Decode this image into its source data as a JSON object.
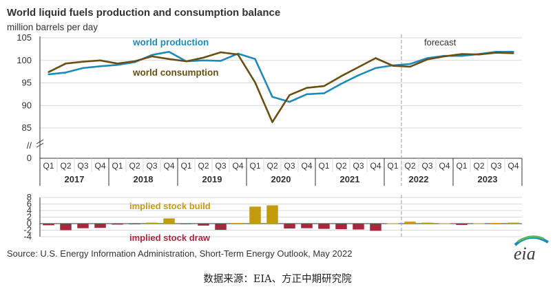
{
  "title": "World liquid fuels production and consumption balance",
  "subtitle": "million barrels per day",
  "colors": {
    "production": "#1d8ab8",
    "consumption": "#6b4f12",
    "build": "#c39b0e",
    "draw": "#a8273f",
    "axis": "#333333",
    "grid": "#d9d9d9",
    "forecast_line": "#aaaaaa"
  },
  "chart_data": [
    {
      "type": "line",
      "title": "World liquid fuels production and consumption balance",
      "ylabel": "million barrels per day",
      "ylim": [
        0,
        105
      ],
      "y_axis_break": "//",
      "yticks": [
        "105",
        "100",
        "95",
        "90",
        "85",
        "//",
        "0"
      ],
      "quarters": [
        "Q1",
        "Q2",
        "Q3",
        "Q4",
        "Q1",
        "Q2",
        "Q3",
        "Q4",
        "Q1",
        "Q2",
        "Q3",
        "Q4",
        "Q1",
        "Q2",
        "Q3",
        "Q4",
        "Q1",
        "Q2",
        "Q3",
        "Q4",
        "Q1",
        "Q2",
        "Q3",
        "Q4",
        "Q1",
        "Q2",
        "Q3",
        "Q4"
      ],
      "years": [
        "2017",
        "2018",
        "2019",
        "2020",
        "2021",
        "2022",
        "2023"
      ],
      "x": [
        "2017Q1",
        "2017Q2",
        "2017Q3",
        "2017Q4",
        "2018Q1",
        "2018Q2",
        "2018Q3",
        "2018Q4",
        "2019Q1",
        "2019Q2",
        "2019Q3",
        "2019Q4",
        "2020Q1",
        "2020Q2",
        "2020Q3",
        "2020Q4",
        "2021Q1",
        "2021Q2",
        "2021Q3",
        "2021Q4",
        "2022Q1",
        "2022Q2",
        "2022Q3",
        "2022Q4",
        "2023Q1",
        "2023Q2",
        "2023Q3",
        "2023Q4"
      ],
      "series": [
        {
          "name": "world production",
          "values": [
            96.9,
            97.3,
            98.3,
            98.7,
            99.0,
            99.6,
            101.2,
            101.9,
            99.8,
            100.0,
            99.9,
            101.5,
            100.3,
            91.9,
            90.8,
            92.5,
            92.7,
            94.8,
            96.7,
            98.3,
            98.9,
            99.2,
            100.5,
            101.0,
            101.0,
            101.4,
            101.9,
            101.9
          ]
        },
        {
          "name": "world consumption",
          "values": [
            97.4,
            99.3,
            99.7,
            100.0,
            99.3,
            99.8,
            100.9,
            100.3,
            99.8,
            100.6,
            101.8,
            101.3,
            95.1,
            86.3,
            92.3,
            93.9,
            94.3,
            96.5,
            98.5,
            100.5,
            98.8,
            98.6,
            100.2,
            100.9,
            101.4,
            101.3,
            101.7,
            101.6
          ]
        }
      ],
      "annotations": {
        "forecast": "forecast",
        "forecast_start": "2022Q2"
      }
    },
    {
      "type": "bar",
      "ylim": [
        -4,
        8
      ],
      "yticks": [
        "8",
        "6",
        "4",
        "2",
        "0",
        "-2",
        "-4"
      ],
      "x": [
        "2017Q1",
        "2017Q2",
        "2017Q3",
        "2017Q4",
        "2018Q1",
        "2018Q2",
        "2018Q3",
        "2018Q4",
        "2019Q1",
        "2019Q2",
        "2019Q3",
        "2019Q4",
        "2020Q1",
        "2020Q2",
        "2020Q3",
        "2020Q4",
        "2021Q1",
        "2021Q2",
        "2021Q3",
        "2021Q4",
        "2022Q1",
        "2022Q2",
        "2022Q3",
        "2022Q4",
        "2023Q1",
        "2023Q2",
        "2023Q3",
        "2023Q4"
      ],
      "values": [
        -0.5,
        -2.0,
        -1.4,
        -1.3,
        -0.3,
        -0.2,
        0.3,
        1.6,
        -0.1,
        -0.6,
        -1.9,
        0.2,
        5.2,
        5.6,
        -1.5,
        -1.4,
        -1.6,
        -1.7,
        -1.8,
        -2.2,
        0.1,
        0.6,
        0.3,
        0.1,
        -0.4,
        0.1,
        0.2,
        0.3
      ],
      "labels": {
        "build": "implied stock  build",
        "draw": "implied stock draw"
      }
    }
  ],
  "source": "Source: U.S. Energy Information Administration, Short-Term Energy Outlook, May 2022",
  "logo_text": "eia",
  "footer": "数据来源：EIA、方正中期研究院"
}
